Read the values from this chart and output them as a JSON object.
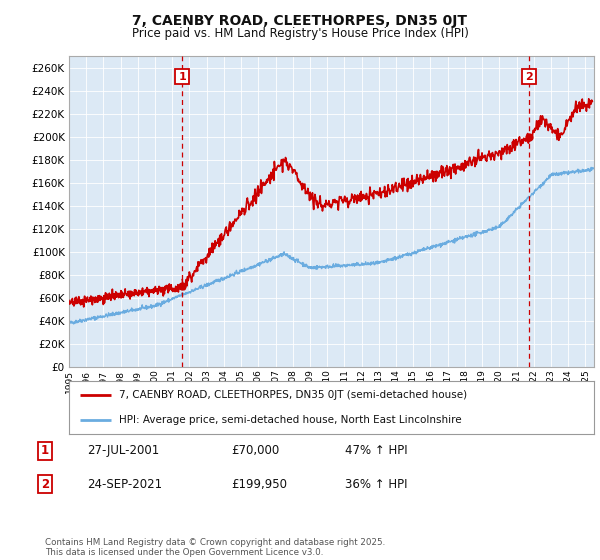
{
  "title": "7, CAENBY ROAD, CLEETHORPES, DN35 0JT",
  "subtitle": "Price paid vs. HM Land Registry's House Price Index (HPI)",
  "ylim": [
    0,
    270000
  ],
  "yticks": [
    0,
    20000,
    40000,
    60000,
    80000,
    100000,
    120000,
    140000,
    160000,
    180000,
    200000,
    220000,
    240000,
    260000
  ],
  "hpi_color": "#6aace0",
  "price_color": "#cc0000",
  "vline_color": "#cc0000",
  "background_color": "#ffffff",
  "chart_bg_color": "#dce9f5",
  "grid_color": "#ffffff",
  "legend_label_price": "7, CAENBY ROAD, CLEETHORPES, DN35 0JT (semi-detached house)",
  "legend_label_hpi": "HPI: Average price, semi-detached house, North East Lincolnshire",
  "transaction1_date": "27-JUL-2001",
  "transaction1_price": "£70,000",
  "transaction1_hpi": "47% ↑ HPI",
  "transaction1_year": 2001.57,
  "transaction1_value": 70000,
  "transaction2_date": "24-SEP-2021",
  "transaction2_price": "£199,950",
  "transaction2_hpi": "36% ↑ HPI",
  "transaction2_year": 2021.73,
  "transaction2_value": 199950,
  "footnote": "Contains HM Land Registry data © Crown copyright and database right 2025.\nThis data is licensed under the Open Government Licence v3.0.",
  "xmin": 1995,
  "xmax": 2025.5
}
